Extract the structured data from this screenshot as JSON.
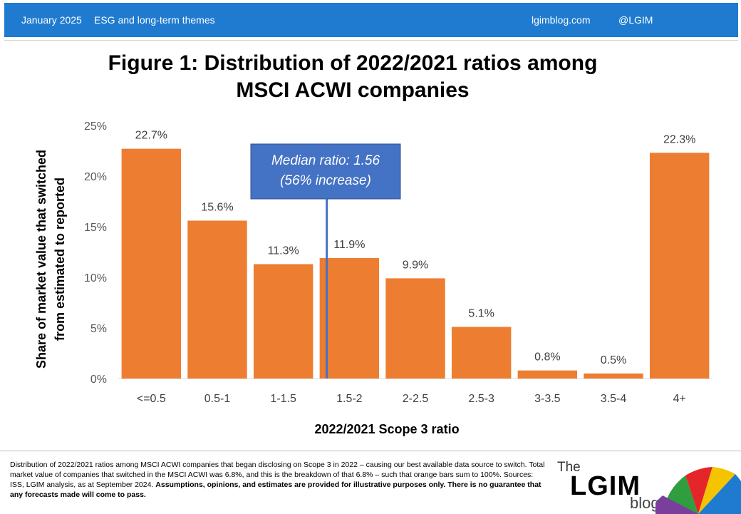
{
  "header": {
    "date": "January 2025",
    "category": "ESG and long-term themes",
    "site": "lgimblog.com",
    "handle": "@LGIM"
  },
  "chart_data": {
    "type": "bar",
    "title_line1": "Figure 1: Distribution of 2022/2021 ratios among",
    "title_line2": "MSCI ACWI companies",
    "xlabel": "2022/2021 Scope 3 ratio",
    "ylabel_line1": "Share of market value that switched",
    "ylabel_line2": "from estimated to reported",
    "categories": [
      "<=0.5",
      "0.5-1",
      "1-1.5",
      "1.5-2",
      "2-2.5",
      "2.5-3",
      "3-3.5",
      "3.5-4",
      "4+"
    ],
    "values": [
      22.7,
      15.6,
      11.3,
      11.9,
      9.9,
      5.1,
      0.8,
      0.5,
      22.3
    ],
    "data_labels": [
      "22.7%",
      "15.6%",
      "11.3%",
      "11.9%",
      "9.9%",
      "5.1%",
      "0.8%",
      "0.5%",
      "22.3%"
    ],
    "yticks": [
      0,
      5,
      10,
      15,
      20,
      25
    ],
    "ytick_labels": [
      "0%",
      "5%",
      "10%",
      "15%",
      "20%",
      "25%"
    ],
    "ylim": [
      0,
      25
    ],
    "grid": false,
    "bar_color": "#ed7d31",
    "median_value": 1.56,
    "median_label_line1": "Median ratio: 1.56",
    "median_label_line2": "(56% increase)",
    "median_color": "#4472c4"
  },
  "footer": {
    "note_regular": "Distribution of 2022/2021 ratios among MSCI ACWI companies that began disclosing on Scope 3 in 2022 – causing our best available data source to switch. Total market value of companies that switched in the MSCI ACWI was 6.8%, and this is the breakdown of that 6.8% – such that orange bars sum to 100%. Sources: ISS, LGIM analysis, as at September 2024. ",
    "note_bold": "Assumptions, opinions, and estimates are provided for illustrative purposes only. There is no guarantee that any forecasts made will come to pass.",
    "logo_the": "The",
    "logo_lgim": "LGIM",
    "logo_blog": "blog"
  }
}
